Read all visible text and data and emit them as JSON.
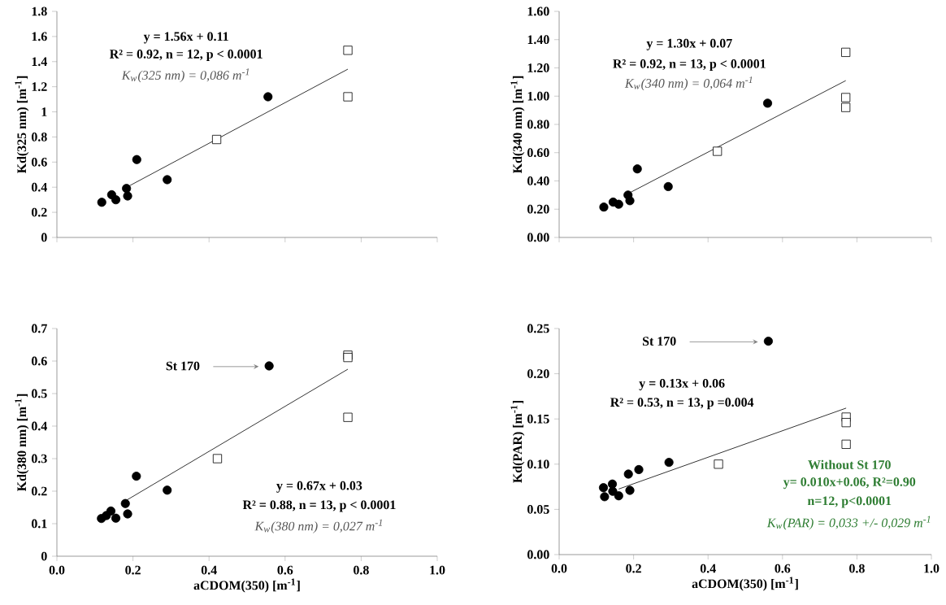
{
  "chart_data": [
    {
      "type": "scatter",
      "ylabel": "Kd(325 nm) [m$^{-1}$]",
      "xlim": [
        0,
        1
      ],
      "ylim": [
        0,
        1.8
      ],
      "tick_labels": "y",
      "xticks": [
        {
          "value": 0,
          "label": null
        },
        {
          "value": 0.2,
          "label": null
        },
        {
          "value": 0.4,
          "label": null
        },
        {
          "value": 0.6,
          "label": null
        },
        {
          "value": 0.8,
          "label": null
        },
        {
          "value": 1,
          "label": null
        }
      ],
      "yticks": [
        0,
        0.2,
        0.4,
        0.6,
        0.8,
        1,
        1.2,
        1.4,
        1.6,
        1.8
      ],
      "series": [
        {
          "type": "scatter",
          "marker": "circle",
          "color": "#000000",
          "x": [
            0.118,
            0.144,
            0.155,
            0.183,
            0.186,
            0.21,
            0.29,
            0.555
          ],
          "values": [
            0.28,
            0.34,
            0.3,
            0.39,
            0.33,
            0.62,
            0.46,
            1.12
          ]
        },
        {
          "type": "scatter",
          "marker": "square",
          "color": "#000000",
          "x": [
            0.42,
            0.765,
            0.765
          ],
          "values": [
            0.78,
            1.49,
            1.12
          ]
        },
        {
          "type": "line",
          "marker": "none",
          "color": "#000000",
          "x": [
            0.19,
            0.765
          ],
          "values": [
            0.41,
            1.34
          ]
        }
      ],
      "annotations": [
        "y = 1.56x + 0.11",
        "R² = 0.92, n = 12, p < 0.0001",
        "K$_{w}$(325 nm) = 0,086 m$^{-1}$"
      ]
    },
    {
      "type": "scatter",
      "ylabel": "Kd(340 nm) [m$^{-1}$]",
      "xlim": [
        0,
        1
      ],
      "ylim": [
        0,
        1.6
      ],
      "tick_labels": "y",
      "xticks": [
        {
          "value": 0,
          "label": null
        },
        {
          "value": 0.2,
          "label": null
        },
        {
          "value": 0.4,
          "label": null
        },
        {
          "value": 0.6,
          "label": null
        },
        {
          "value": 0.8,
          "label": null
        },
        {
          "value": 1,
          "label": null
        }
      ],
      "yticks": [
        {
          "value": 0,
          "label": "0.00"
        },
        {
          "value": 0.2,
          "label": "0.20"
        },
        {
          "value": 0.4,
          "label": "0.40"
        },
        {
          "value": 0.6,
          "label": "0.60"
        },
        {
          "value": 0.8,
          "label": "0.80"
        },
        {
          "value": 1,
          "label": "1.00"
        },
        {
          "value": 1.2,
          "label": "1.20"
        },
        {
          "value": 1.4,
          "label": "1.40"
        },
        {
          "value": 1.6,
          "label": "1.60"
        }
      ],
      "series": [
        {
          "type": "scatter",
          "marker": "circle",
          "color": "#000000",
          "x": [
            0.12,
            0.145,
            0.16,
            0.185,
            0.19,
            0.21,
            0.293,
            0.56
          ],
          "values": [
            0.215,
            0.25,
            0.235,
            0.3,
            0.26,
            0.485,
            0.36,
            0.95
          ]
        },
        {
          "type": "scatter",
          "marker": "square",
          "color": "#000000",
          "x": [
            0.425,
            0.77,
            0.77,
            0.77
          ],
          "values": [
            0.61,
            1.31,
            0.99,
            0.92
          ]
        },
        {
          "type": "line",
          "marker": "none",
          "color": "#000000",
          "x": [
            0.185,
            0.77
          ],
          "values": [
            0.31,
            1.11
          ]
        }
      ],
      "annotations": [
        "y = 1.30x + 0.07",
        "R² = 0.92, n = 13, p < 0.0001",
        "K$_{w}$(340 nm) = 0,064 m$^{-1}$"
      ]
    },
    {
      "type": "scatter",
      "xlabel": "aCDOM(350) [m$^{-1}$]",
      "ylabel": "Kd(380 nm) [m$^{-1}$]",
      "xlim": [
        0,
        1
      ],
      "ylim": [
        0,
        0.7
      ],
      "xticks": [
        {
          "value": 0,
          "label": "0.0"
        },
        {
          "value": 0.2,
          "label": "0.2"
        },
        {
          "value": 0.4,
          "label": "0.4"
        },
        {
          "value": 0.6,
          "label": "0.6"
        },
        {
          "value": 0.8,
          "label": "0.8"
        },
        {
          "value": 1,
          "label": "1.0"
        }
      ],
      "yticks": [
        0,
        0.1,
        0.2,
        0.3,
        0.4,
        0.5,
        0.6,
        0.7
      ],
      "series": [
        {
          "type": "scatter",
          "marker": "circle",
          "color": "#000000",
          "x": [
            0.117,
            0.13,
            0.142,
            0.155,
            0.18,
            0.186,
            0.209,
            0.29,
            0.558
          ],
          "values": [
            0.116,
            0.125,
            0.139,
            0.117,
            0.162,
            0.13,
            0.246,
            0.203,
            0.585
          ]
        },
        {
          "type": "scatter",
          "marker": "square",
          "color": "#000000",
          "x": [
            0.422,
            0.765,
            0.765,
            0.765
          ],
          "values": [
            0.3,
            0.618,
            0.611,
            0.427
          ]
        },
        {
          "type": "line",
          "marker": "none",
          "color": "#000000",
          "x": [
            0.18,
            0.765
          ],
          "values": [
            0.17,
            0.575
          ]
        }
      ],
      "annotations": [
        {
          "text": "St 170",
          "x": 0.558,
          "y": 0.585
        },
        "y = 0.67x + 0.03",
        "R² = 0.88, n = 13, p < 0.0001",
        "K$_{w}$(380 nm) = 0,027 m$^{-1}$"
      ]
    },
    {
      "type": "scatter",
      "xlabel": "aCDOM(350) [m$^{-1}$]",
      "ylabel": "Kd(PAR) [m$^{-1}$]",
      "xlim": [
        0,
        1
      ],
      "ylim": [
        0,
        0.25
      ],
      "xticks": [
        {
          "value": 0,
          "label": "0.0"
        },
        {
          "value": 0.2,
          "label": "0.2"
        },
        {
          "value": 0.4,
          "label": "0.4"
        },
        {
          "value": 0.6,
          "label": "0.6"
        },
        {
          "value": 0.8,
          "label": "0.8"
        },
        {
          "value": 1,
          "label": "1.0"
        }
      ],
      "yticks": [
        {
          "value": 0,
          "label": "0.00"
        },
        {
          "value": 0.05,
          "label": "0.05"
        },
        {
          "value": 0.1,
          "label": "0.10"
        },
        {
          "value": 0.15,
          "label": "0.15"
        },
        {
          "value": 0.2,
          "label": "0.20"
        },
        {
          "value": 0.25,
          "label": "0.25"
        }
      ],
      "series": [
        {
          "type": "scatter",
          "marker": "circle",
          "color": "#000000",
          "x": [
            0.119,
            0.122,
            0.143,
            0.144,
            0.16,
            0.186,
            0.19,
            0.214,
            0.295,
            0.562
          ],
          "values": [
            0.074,
            0.064,
            0.078,
            0.07,
            0.065,
            0.089,
            0.071,
            0.094,
            0.102,
            0.236
          ]
        },
        {
          "type": "scatter",
          "marker": "square",
          "color": "#000000",
          "x": [
            0.428,
            0.771,
            0.771,
            0.771
          ],
          "values": [
            0.1,
            0.152,
            0.146,
            0.122
          ]
        },
        {
          "type": "line",
          "marker": "none",
          "color": "#000000",
          "x": [
            0.16,
            0.771
          ],
          "values": [
            0.0725,
            0.162
          ]
        }
      ],
      "annotations": [
        {
          "text": "St 170",
          "x": 0.562,
          "y": 0.236
        },
        "y = 0.13x + 0.06",
        "R² = 0.53, n = 13, p =0.004",
        "Without St 170",
        "y= 0.010x+0.06, R²=0.90",
        "n=12, p<0.0001",
        "K$_{w}$(PAR) = 0,033 +/- 0,029 m$^{-1}$"
      ]
    }
  ]
}
